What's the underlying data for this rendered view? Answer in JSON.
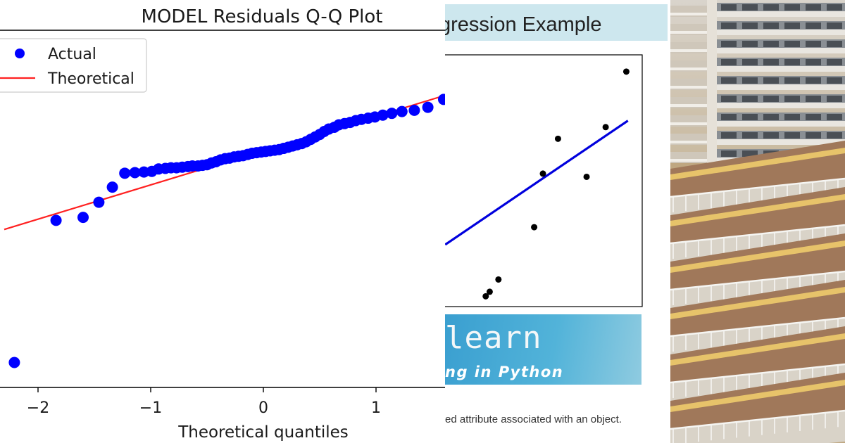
{
  "qq_plot": {
    "title": "MODEL Residuals Q-Q Plot",
    "xlabel": "Theoretical quantiles",
    "legend": {
      "actual": "Actual",
      "theoretical": "Theoretical"
    },
    "colors": {
      "actual": "#0000ff",
      "theoretical": "#ff2020"
    }
  },
  "regression_panel": {
    "title": "gression Example",
    "banner_word": "learn",
    "banner_subtitle": "ng in Python",
    "caption": "ed attribute associated  with an object.",
    "colors": {
      "title_bg": "#cde7ee",
      "line": "#0000dd",
      "points": "#000000"
    }
  },
  "photo": {
    "description_icon": "apartment-building-photo"
  },
  "chart_data": [
    {
      "type": "scatter",
      "title": "MODEL Residuals Q-Q Plot",
      "xlabel": "Theoretical quantiles",
      "ylabel": "",
      "xlim": [
        -2.3,
        1.6
      ],
      "x_ticks": [
        -2,
        -1,
        0,
        1
      ],
      "x_tick_labels": [
        "−2",
        "−1",
        "0",
        "1"
      ],
      "legend_position": "top-left",
      "grid": false,
      "series": [
        {
          "name": "Actual",
          "kind": "points",
          "x": [
            -2.21,
            -1.84,
            -1.6,
            -1.46,
            -1.34,
            -1.23,
            -1.14,
            -1.06,
            -0.99,
            -0.93,
            -0.87,
            -0.82,
            -0.77,
            -0.72,
            -0.67,
            -0.63,
            -0.58,
            -0.54,
            -0.5,
            -0.46,
            -0.42,
            -0.38,
            -0.34,
            -0.3,
            -0.26,
            -0.22,
            -0.18,
            -0.14,
            -0.1,
            -0.06,
            -0.02,
            0.02,
            0.06,
            0.1,
            0.14,
            0.18,
            0.22,
            0.26,
            0.3,
            0.34,
            0.38,
            0.42,
            0.46,
            0.5,
            0.54,
            0.58,
            0.63,
            0.67,
            0.72,
            0.77,
            0.82,
            0.87,
            0.93,
            0.99,
            1.06,
            1.14,
            1.23,
            1.34,
            1.46,
            1.6
          ],
          "y": [
            -3.25,
            -0.9,
            -0.85,
            -0.6,
            -0.35,
            -0.12,
            -0.11,
            -0.1,
            -0.09,
            -0.05,
            -0.04,
            -0.03,
            -0.03,
            -0.02,
            -0.01,
            0.0,
            0.0,
            0.01,
            0.02,
            0.05,
            0.07,
            0.1,
            0.12,
            0.13,
            0.15,
            0.16,
            0.17,
            0.19,
            0.21,
            0.22,
            0.23,
            0.24,
            0.25,
            0.26,
            0.27,
            0.29,
            0.31,
            0.33,
            0.35,
            0.37,
            0.4,
            0.44,
            0.48,
            0.52,
            0.57,
            0.61,
            0.64,
            0.68,
            0.7,
            0.72,
            0.75,
            0.77,
            0.79,
            0.81,
            0.84,
            0.87,
            0.9,
            0.92,
            0.97,
            1.1
          ]
        },
        {
          "name": "Theoretical",
          "kind": "line",
          "x": [
            -2.3,
            1.6
          ],
          "y": [
            -1.05,
            1.16
          ]
        }
      ]
    },
    {
      "type": "scatter",
      "title": "gression Example",
      "series": [
        {
          "kind": "points",
          "x": [
            2.1,
            2.6,
            3.7,
            8.2,
            9.3,
            11.2,
            14.8,
            17.2,
            19.8
          ],
          "y": [
            0.6,
            1.3,
            3.2,
            11.3,
            19.6,
            25.0,
            19.1,
            26.8,
            35.4
          ]
        },
        {
          "kind": "line",
          "x": [
            -3.0,
            20.0
          ],
          "y": [
            8.6,
            27.8
          ]
        }
      ],
      "xlim": [
        -3.2,
        21.8
      ],
      "ylim": [
        -1.0,
        38.0
      ],
      "grid": false
    }
  ]
}
